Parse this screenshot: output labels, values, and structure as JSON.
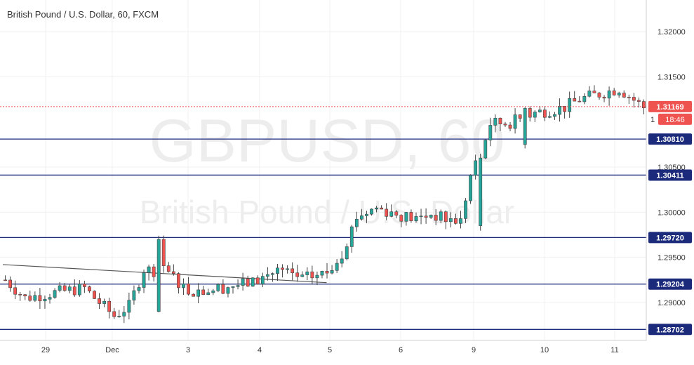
{
  "title": "British Pound / U.S. Dollar, 60, FXCM",
  "watermark": {
    "line1": "GBPUSD, 60",
    "line2": "British Pound / U.S. Dollar"
  },
  "chart_data": {
    "type": "candlestick",
    "symbol": "GBPUSD",
    "timeframe": "60",
    "ylim": [
      1.2858,
      1.3235
    ],
    "y_ticks": [
      "1.32000",
      "1.31500",
      "1.30500",
      "1.30000",
      "1.29500",
      "1.29000"
    ],
    "x_ticks": [
      "29",
      "Dec",
      "3",
      "4",
      "5",
      "6",
      "9",
      "10",
      "11"
    ],
    "horizontal_levels": [
      {
        "label": "1.30810",
        "value": 1.3081
      },
      {
        "label": "1.30411",
        "value": 1.30411
      },
      {
        "label": "1.29720",
        "value": 1.2972
      },
      {
        "label": "1.29204",
        "value": 1.29204
      },
      {
        "label": "1.28702",
        "value": 1.28702
      }
    ],
    "trendline": {
      "from": [
        0,
        1.2942
      ],
      "to": [
        55,
        1.2922
      ]
    },
    "current_price": {
      "label": "1.31169",
      "value": 1.31169,
      "countdown": "18:46",
      "axis_partial": "1"
    },
    "candle_count": 130,
    "close_path": [
      [
        0,
        1.2925
      ],
      [
        4,
        1.2905
      ],
      [
        10,
        1.2911
      ],
      [
        16,
        1.2916
      ],
      [
        18,
        1.2905
      ],
      [
        22,
        1.2885
      ],
      [
        25,
        1.2896
      ],
      [
        28,
        1.2937
      ],
      [
        33,
        1.2933
      ],
      [
        37,
        1.2913
      ],
      [
        41,
        1.2914
      ],
      [
        45,
        1.2918
      ],
      [
        50,
        1.2922
      ],
      [
        55,
        1.2936
      ],
      [
        60,
        1.2926
      ],
      [
        65,
        1.2933
      ],
      [
        68,
        1.2955
      ],
      [
        71,
        1.2995
      ],
      [
        75,
        1.3005
      ],
      [
        79,
        1.2998
      ],
      [
        83,
        1.2992
      ],
      [
        86,
        1.2998
      ],
      [
        89,
        1.2992
      ],
      [
        92,
        1.299
      ],
      [
        94,
        1.304
      ],
      [
        96,
        1.3065
      ],
      [
        98,
        1.3098
      ],
      [
        102,
        1.3099
      ],
      [
        107,
        1.311
      ],
      [
        113,
        1.3116
      ],
      [
        116,
        1.3125
      ],
      [
        120,
        1.3131
      ],
      [
        124,
        1.3137
      ],
      [
        129,
        1.3116
      ]
    ],
    "special_candles": [
      [
        31,
        1.297,
        1.289
      ],
      [
        96,
        1.306,
        1.2985
      ],
      [
        105,
        1.3115,
        1.3075
      ]
    ],
    "colors": {
      "up": "#26a69a",
      "down": "#ef5350",
      "level": "#1b2a7a",
      "trend": "#555555",
      "price": "#ef5350"
    }
  }
}
